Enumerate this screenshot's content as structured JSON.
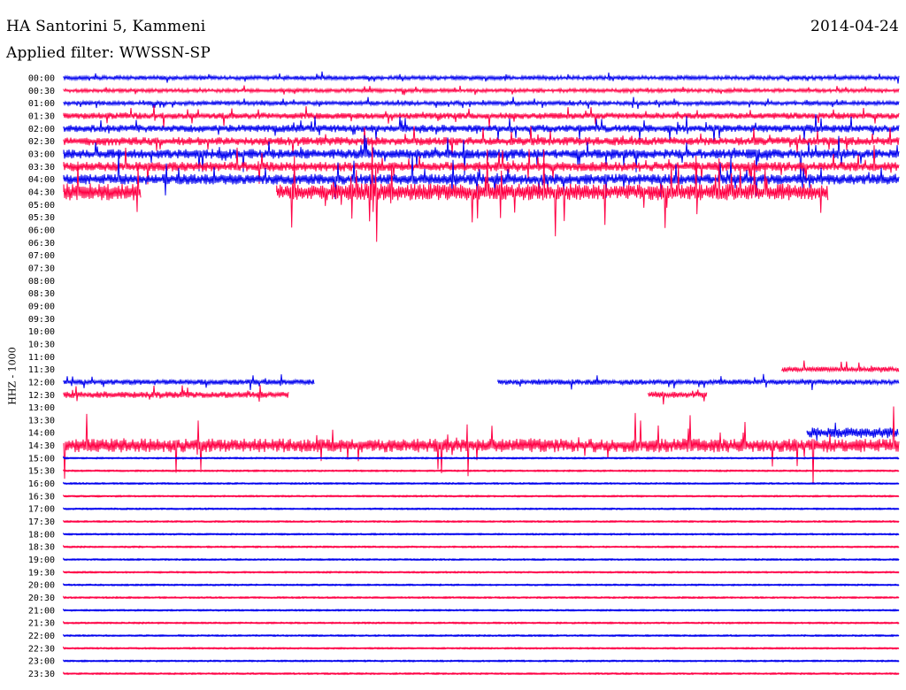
{
  "header": {
    "station": "HA Santorini 5, Kammeni",
    "date": "2014-04-24",
    "filter": "Applied filter: WWSSN-SP"
  },
  "axis": {
    "ylabel": "HHZ - 1000"
  },
  "colors": {
    "even_row": "#0000ee",
    "odd_row": "#ff0044"
  },
  "chart_data": {
    "type": "line",
    "title": "HA Santorini 5, Kammeni",
    "ylabel": "HHZ - 1000",
    "rows": [
      {
        "label": "00:00",
        "activity": 0.4,
        "segments": [
          [
            0.0,
            1.0
          ]
        ]
      },
      {
        "label": "00:30",
        "activity": 0.35,
        "segments": [
          [
            0.0,
            1.0
          ]
        ]
      },
      {
        "label": "01:00",
        "activity": 0.4,
        "segments": [
          [
            0.0,
            1.0
          ]
        ]
      },
      {
        "label": "01:30",
        "activity": 0.6,
        "segments": [
          [
            0.0,
            1.0
          ]
        ]
      },
      {
        "label": "02:00",
        "activity": 0.7,
        "segments": [
          [
            0.0,
            1.0
          ]
        ]
      },
      {
        "label": "02:30",
        "activity": 0.8,
        "segments": [
          [
            0.0,
            1.0
          ]
        ]
      },
      {
        "label": "03:00",
        "activity": 0.9,
        "segments": [
          [
            0.0,
            1.0
          ]
        ]
      },
      {
        "label": "03:30",
        "activity": 0.9,
        "segments": [
          [
            0.0,
            1.0
          ]
        ]
      },
      {
        "label": "04:00",
        "activity": 1.0,
        "segments": [
          [
            0.0,
            1.0
          ]
        ]
      },
      {
        "label": "04:30",
        "activity": 1.6,
        "segments": [
          [
            0.0,
            0.093
          ],
          [
            0.255,
            0.915
          ]
        ]
      },
      {
        "label": "05:00",
        "activity": 0.0,
        "segments": []
      },
      {
        "label": "05:30",
        "activity": 0.0,
        "segments": []
      },
      {
        "label": "06:00",
        "activity": 0.0,
        "segments": []
      },
      {
        "label": "06:30",
        "activity": 0.0,
        "segments": []
      },
      {
        "label": "07:00",
        "activity": 0.0,
        "segments": []
      },
      {
        "label": "07:30",
        "activity": 0.0,
        "segments": []
      },
      {
        "label": "08:00",
        "activity": 0.0,
        "segments": []
      },
      {
        "label": "08:30",
        "activity": 0.0,
        "segments": []
      },
      {
        "label": "09:00",
        "activity": 0.0,
        "segments": []
      },
      {
        "label": "09:30",
        "activity": 0.0,
        "segments": []
      },
      {
        "label": "10:00",
        "activity": 0.0,
        "segments": []
      },
      {
        "label": "10:30",
        "activity": 0.0,
        "segments": []
      },
      {
        "label": "11:00",
        "activity": 0.0,
        "segments": []
      },
      {
        "label": "11:30",
        "activity": 0.5,
        "segments": [
          [
            0.86,
            1.0
          ]
        ]
      },
      {
        "label": "12:00",
        "activity": 0.5,
        "segments": [
          [
            0.0,
            0.3
          ],
          [
            0.52,
            1.0
          ]
        ]
      },
      {
        "label": "12:30",
        "activity": 0.6,
        "segments": [
          [
            0.0,
            0.27
          ],
          [
            0.7,
            0.77
          ]
        ]
      },
      {
        "label": "13:00",
        "activity": 0.0,
        "segments": []
      },
      {
        "label": "13:30",
        "activity": 0.0,
        "segments": []
      },
      {
        "label": "14:00",
        "activity": 1.0,
        "segments": [
          [
            0.89,
            1.0
          ]
        ]
      },
      {
        "label": "14:30",
        "activity": 1.3,
        "segments": [
          [
            0.0,
            1.0
          ]
        ]
      },
      {
        "label": "15:00",
        "activity": 0.05,
        "segments": [
          [
            0.0,
            1.0
          ]
        ]
      },
      {
        "label": "15:30",
        "activity": 0.05,
        "segments": [
          [
            0.0,
            1.0
          ]
        ]
      },
      {
        "label": "16:00",
        "activity": 0.05,
        "segments": [
          [
            0.0,
            1.0
          ]
        ]
      },
      {
        "label": "16:30",
        "activity": 0.1,
        "segments": [
          [
            0.0,
            1.0
          ]
        ]
      },
      {
        "label": "17:00",
        "activity": 0.05,
        "segments": [
          [
            0.0,
            1.0
          ]
        ]
      },
      {
        "label": "17:30",
        "activity": 0.05,
        "segments": [
          [
            0.0,
            1.0
          ]
        ]
      },
      {
        "label": "18:00",
        "activity": 0.05,
        "segments": [
          [
            0.0,
            1.0
          ]
        ]
      },
      {
        "label": "18:30",
        "activity": 0.05,
        "segments": [
          [
            0.0,
            1.0
          ]
        ]
      },
      {
        "label": "19:00",
        "activity": 0.05,
        "segments": [
          [
            0.0,
            1.0
          ]
        ]
      },
      {
        "label": "19:30",
        "activity": 0.05,
        "segments": [
          [
            0.0,
            1.0
          ]
        ]
      },
      {
        "label": "20:00",
        "activity": 0.05,
        "segments": [
          [
            0.0,
            1.0
          ]
        ]
      },
      {
        "label": "20:30",
        "activity": 0.05,
        "segments": [
          [
            0.0,
            1.0
          ]
        ]
      },
      {
        "label": "21:00",
        "activity": 0.08,
        "segments": [
          [
            0.0,
            1.0
          ]
        ]
      },
      {
        "label": "21:30",
        "activity": 0.05,
        "segments": [
          [
            0.0,
            1.0
          ]
        ]
      },
      {
        "label": "22:00",
        "activity": 0.05,
        "segments": [
          [
            0.0,
            1.0
          ]
        ]
      },
      {
        "label": "22:30",
        "activity": 0.05,
        "segments": [
          [
            0.0,
            1.0
          ]
        ]
      },
      {
        "label": "23:00",
        "activity": 0.05,
        "segments": [
          [
            0.0,
            1.0
          ]
        ]
      },
      {
        "label": "23:30",
        "activity": 0.05,
        "segments": [
          [
            0.0,
            1.0
          ]
        ]
      }
    ]
  }
}
